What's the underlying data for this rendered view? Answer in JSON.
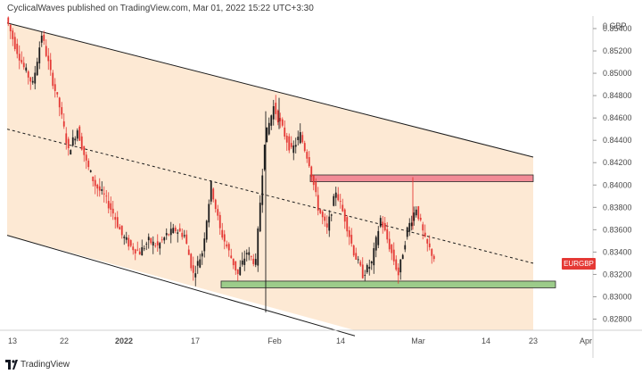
{
  "header": {
    "text": "CyclicalWaves published on TradingView.com, Mar 01, 2022 15:22 UTC+3:30"
  },
  "price_axis": {
    "currency_label": "0 GBP",
    "ticks": [
      "0.85400",
      "0.85200",
      "0.85000",
      "0.84800",
      "0.84600",
      "0.84400",
      "0.84200",
      "0.84000",
      "0.83800",
      "0.83600",
      "0.83400",
      "0.83200",
      "0.83000",
      "0.82800"
    ]
  },
  "time_axis": {
    "ticks": [
      "13",
      "22",
      "2022",
      "17",
      "Feb",
      "14",
      "Mar",
      "14",
      "23",
      "Apr"
    ]
  },
  "symbol": {
    "label": "EURGBP",
    "color": "#e53935"
  },
  "footer": {
    "brand": "TradingView"
  },
  "colors": {
    "channel_fill": "#fde7cf",
    "resistance_zone": "#f28b96",
    "support_zone": "#9ccc8a",
    "candle_down": "#e53935",
    "candle_up": "#1b1b1b"
  },
  "chart_data": {
    "type": "candlestick",
    "symbol": "EURGBP",
    "x_ticks": [
      "13",
      "22",
      "2022",
      "17",
      "Feb",
      "14",
      "Mar",
      "14",
      "23",
      "Apr"
    ],
    "y_ticks": [
      0.854,
      0.852,
      0.85,
      0.848,
      0.846,
      0.844,
      0.842,
      0.84,
      0.838,
      0.836,
      0.834,
      0.832,
      0.83,
      0.828
    ],
    "ylim": [
      0.8265,
      0.8563
    ],
    "close_path": [
      {
        "t": 0,
        "p": 0.855
      },
      {
        "t": 2,
        "p": 0.8525
      },
      {
        "t": 4,
        "p": 0.8505
      },
      {
        "t": 6,
        "p": 0.849
      },
      {
        "t": 8,
        "p": 0.8535
      },
      {
        "t": 10,
        "p": 0.85
      },
      {
        "t": 12,
        "p": 0.847
      },
      {
        "t": 14,
        "p": 0.843
      },
      {
        "t": 16,
        "p": 0.845
      },
      {
        "t": 18,
        "p": 0.842
      },
      {
        "t": 20,
        "p": 0.84
      },
      {
        "t": 22,
        "p": 0.839
      },
      {
        "t": 24,
        "p": 0.8375
      },
      {
        "t": 26,
        "p": 0.8355
      },
      {
        "t": 28,
        "p": 0.8345
      },
      {
        "t": 30,
        "p": 0.834
      },
      {
        "t": 32,
        "p": 0.835
      },
      {
        "t": 34,
        "p": 0.8345
      },
      {
        "t": 36,
        "p": 0.8355
      },
      {
        "t": 38,
        "p": 0.836
      },
      {
        "t": 40,
        "p": 0.8355
      },
      {
        "t": 42,
        "p": 0.832
      },
      {
        "t": 44,
        "p": 0.834
      },
      {
        "t": 46,
        "p": 0.84
      },
      {
        "t": 48,
        "p": 0.836
      },
      {
        "t": 50,
        "p": 0.834
      },
      {
        "t": 52,
        "p": 0.832
      },
      {
        "t": 54,
        "p": 0.834
      },
      {
        "t": 56,
        "p": 0.833
      },
      {
        "t": 58,
        "p": 0.844
      },
      {
        "t": 60,
        "p": 0.847
      },
      {
        "t": 62,
        "p": 0.845
      },
      {
        "t": 64,
        "p": 0.843
      },
      {
        "t": 66,
        "p": 0.8445
      },
      {
        "t": 68,
        "p": 0.842
      },
      {
        "t": 70,
        "p": 0.838
      },
      {
        "t": 72,
        "p": 0.836
      },
      {
        "t": 74,
        "p": 0.8395
      },
      {
        "t": 76,
        "p": 0.837
      },
      {
        "t": 78,
        "p": 0.834
      },
      {
        "t": 80,
        "p": 0.832
      },
      {
        "t": 82,
        "p": 0.833
      },
      {
        "t": 84,
        "p": 0.837
      },
      {
        "t": 86,
        "p": 0.8345
      },
      {
        "t": 88,
        "p": 0.832
      },
      {
        "t": 90,
        "p": 0.836
      },
      {
        "t": 92,
        "p": 0.838
      },
      {
        "t": 94,
        "p": 0.835
      },
      {
        "t": 96,
        "p": 0.8335
      }
    ],
    "channel_upper": [
      {
        "t": 0,
        "p": 0.8545
      },
      {
        "t": 118,
        "p": 0.8425
      }
    ],
    "channel_mid": [
      {
        "t": 0,
        "p": 0.845
      },
      {
        "t": 118,
        "p": 0.833
      }
    ],
    "channel_lower": [
      {
        "t": 0,
        "p": 0.8355
      },
      {
        "t": 78,
        "p": 0.8265
      }
    ],
    "resistance_zone": {
      "p_top": 0.8409,
      "p_bottom": 0.8403,
      "t_start": 68,
      "t_end": 118
    },
    "support_zone": {
      "p_top": 0.8314,
      "p_bottom": 0.8308,
      "t_start": 48,
      "t_end": 123
    }
  }
}
